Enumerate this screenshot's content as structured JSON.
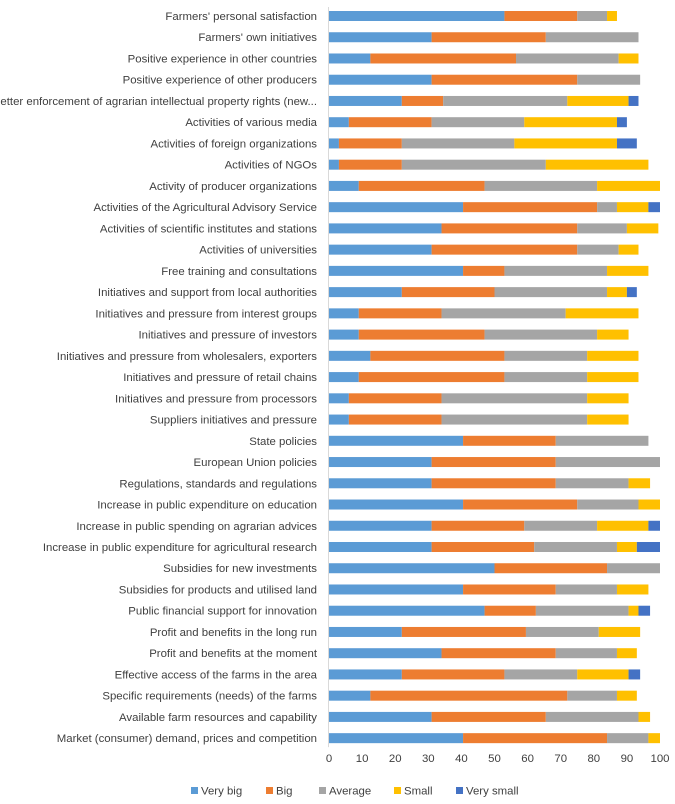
{
  "chart_data": {
    "type": "bar",
    "orientation": "horizontal",
    "stacked": true,
    "title": "",
    "xlabel": "",
    "ylabel": "",
    "xlim": [
      0,
      100
    ],
    "xticks": [
      "0",
      "10",
      "20",
      "30",
      "40",
      "50",
      "60",
      "70",
      "80",
      "90",
      "100"
    ],
    "grid": false,
    "legend_position": "bottom",
    "categories": [
      "Farmers' personal satisfaction",
      "Farmers' own initiatives",
      "Positive experience in other countries",
      "Positive experience of other producers",
      "Better enforcement of agrarian intellectual property rights (new...",
      "Activities of various media",
      "Activities of foreign organizations",
      "Activities of NGOs",
      "Activity of producer organizations",
      "Activities of the Agricultural Advisory Service",
      "Activities of scientific institutes and stations",
      "Activities of universities",
      "Free training and consultations",
      "Initiatives and support from local authorities",
      "Initiatives and pressure from interest groups",
      "Initiatives and pressure of investors",
      "Initiatives and pressure from wholesalers, exporters",
      "Initiatives and pressure of retail chains",
      "Initiatives and pressure from processors",
      "Suppliers initiatives and pressure",
      "State policies",
      "European Union policies",
      "Regulations, standards and regulations",
      "Increase in public expenditure on education",
      "Increase in public spending on agrarian advices",
      "Increase in public expenditure for agricultural research",
      "Subsidies for new investments",
      "Subsidies for products and utilised land",
      "Public financial support for innovation",
      "Profit and benefits in the long run",
      "Profit and benefits at the moment",
      "Effective access of the farms in the area",
      "Specific requirements (needs) of the farms",
      "Available farm resources and capability",
      "Market (consumer) demand, prices and competition"
    ],
    "series": [
      {
        "name": "Very big",
        "color": "#5B9BD5",
        "values": [
          53,
          31,
          12.5,
          31,
          22,
          6,
          3,
          3,
          9,
          40.5,
          34,
          31,
          40.5,
          22,
          9,
          9,
          12.5,
          9,
          6,
          6,
          40.5,
          31,
          31,
          40.5,
          31,
          31,
          50,
          40.5,
          47,
          22,
          34,
          22,
          12.5,
          31,
          40.5
        ]
      },
      {
        "name": "Big",
        "color": "#ED7D31",
        "values": [
          22,
          34.5,
          44,
          44,
          12.5,
          25,
          19,
          19,
          38,
          40.5,
          41,
          44,
          12.5,
          28,
          25,
          38,
          40.5,
          44,
          28,
          28,
          28,
          37.5,
          37.5,
          34.5,
          28,
          31,
          34,
          28,
          15.5,
          37.5,
          34.5,
          31,
          59.5,
          34.5,
          43.5
        ]
      },
      {
        "name": "Average",
        "color": "#A5A5A5",
        "values": [
          9,
          28,
          31,
          19,
          37.5,
          28,
          34,
          43.5,
          34,
          6,
          15,
          12.5,
          31,
          34,
          37.5,
          34,
          25,
          25,
          44,
          44,
          28,
          31.5,
          22,
          18.5,
          22,
          25,
          16,
          18.5,
          28,
          22,
          18.5,
          22,
          15,
          28,
          12.5
        ]
      },
      {
        "name": "Small",
        "color": "#FFC000",
        "values": [
          3,
          0,
          6,
          0,
          18.5,
          28,
          31,
          31,
          19,
          9.5,
          9.5,
          6,
          12.5,
          6,
          22,
          9.5,
          15.5,
          15.5,
          12.5,
          12.5,
          0,
          0,
          6.5,
          6.5,
          15.5,
          6,
          0,
          9.5,
          3,
          12.5,
          6,
          15.5,
          6,
          3.5,
          3.5
        ]
      },
      {
        "name": "Very small",
        "color": "#4472C4",
        "values": [
          0,
          0,
          0,
          0,
          3,
          3,
          6,
          0,
          0,
          3.5,
          0,
          0,
          0,
          3,
          0,
          0,
          0,
          0,
          0,
          0,
          0,
          0,
          0,
          0,
          3.5,
          7,
          0,
          0,
          3.5,
          0,
          0,
          3.5,
          0,
          0,
          0
        ]
      }
    ]
  }
}
